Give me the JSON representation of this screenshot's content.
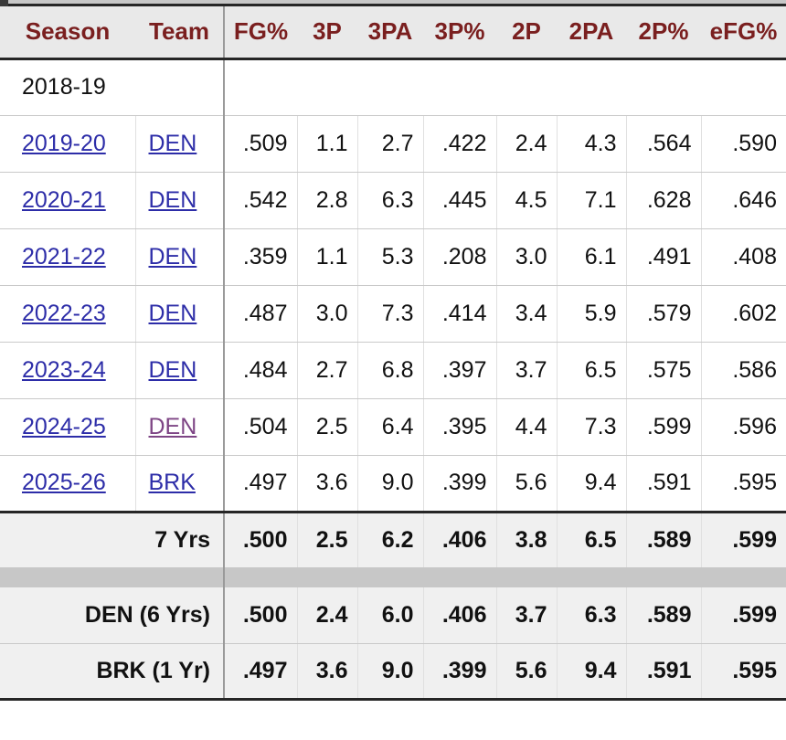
{
  "table": {
    "columns": [
      "Season",
      "Team",
      "FG%",
      "3P",
      "3PA",
      "3P%",
      "2P",
      "2PA",
      "2P%",
      "eFG%"
    ],
    "collapsed_row_label": "2018-19",
    "rows": [
      {
        "season": "2019-20",
        "team": "DEN",
        "team_visited": false,
        "stats": [
          ".509",
          "1.1",
          "2.7",
          ".422",
          "2.4",
          "4.3",
          ".564",
          ".590"
        ]
      },
      {
        "season": "2020-21",
        "team": "DEN",
        "team_visited": false,
        "stats": [
          ".542",
          "2.8",
          "6.3",
          ".445",
          "4.5",
          "7.1",
          ".628",
          ".646"
        ]
      },
      {
        "season": "2021-22",
        "team": "DEN",
        "team_visited": false,
        "stats": [
          ".359",
          "1.1",
          "5.3",
          ".208",
          "3.0",
          "6.1",
          ".491",
          ".408"
        ]
      },
      {
        "season": "2022-23",
        "team": "DEN",
        "team_visited": false,
        "stats": [
          ".487",
          "3.0",
          "7.3",
          ".414",
          "3.4",
          "5.9",
          ".579",
          ".602"
        ]
      },
      {
        "season": "2023-24",
        "team": "DEN",
        "team_visited": false,
        "stats": [
          ".484",
          "2.7",
          "6.8",
          ".397",
          "3.7",
          "6.5",
          ".575",
          ".586"
        ]
      },
      {
        "season": "2024-25",
        "team": "DEN",
        "team_visited": true,
        "stats": [
          ".504",
          "2.5",
          "6.4",
          ".395",
          "4.4",
          "7.3",
          ".599",
          ".596"
        ]
      },
      {
        "season": "2025-26",
        "team": "BRK",
        "team_visited": false,
        "stats": [
          ".497",
          "3.6",
          "9.0",
          ".399",
          "5.6",
          "9.4",
          ".591",
          ".595"
        ]
      }
    ],
    "career": {
      "label": "7 Yrs",
      "stats": [
        ".500",
        "2.5",
        "6.2",
        ".406",
        "3.8",
        "6.5",
        ".589",
        ".599"
      ]
    },
    "team_summaries": [
      {
        "label": "DEN (6 Yrs)",
        "stats": [
          ".500",
          "2.4",
          "6.0",
          ".406",
          "3.7",
          "6.3",
          ".589",
          ".599"
        ]
      },
      {
        "label": "BRK (1 Yr)",
        "stats": [
          ".497",
          "3.6",
          "9.0",
          ".399",
          "5.6",
          "9.4",
          ".591",
          ".595"
        ]
      }
    ],
    "colors": {
      "header_text": "#7a1f1f",
      "link": "#2d2da8",
      "visited_link": "#7e4585",
      "header_bg": "#e9e9e9",
      "summary_bg": "#f0f0f0",
      "separator_bg": "#c7c7c7",
      "strong_border": "#262626"
    }
  }
}
